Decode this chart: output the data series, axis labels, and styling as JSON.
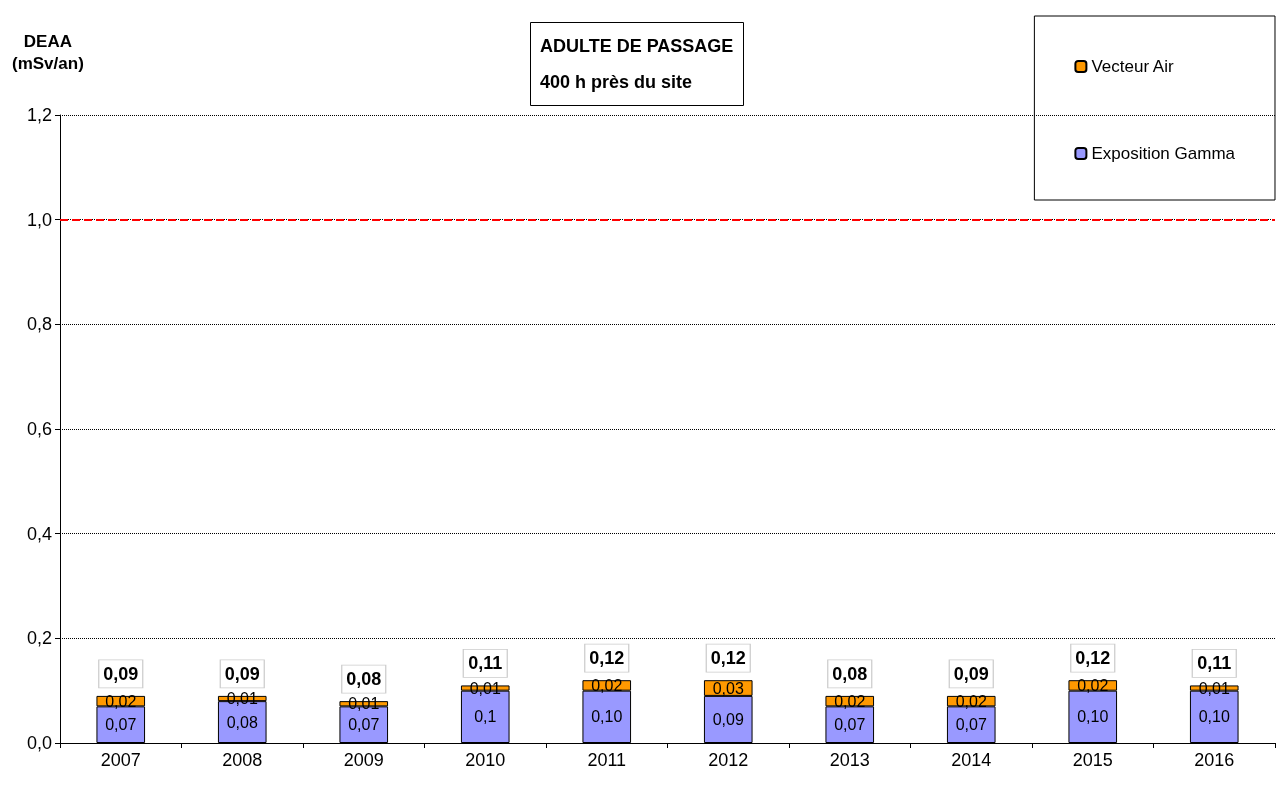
{
  "chart_data": {
    "type": "bar",
    "title": "ADULTE DE PASSAGE",
    "subtitle": "400 h près du site",
    "ylabel": "DEAA\n(mSv/an)",
    "categories": [
      "2007",
      "2008",
      "2009",
      "2010",
      "2011",
      "2012",
      "2013",
      "2014",
      "2015",
      "2016"
    ],
    "stacked": true,
    "series": [
      {
        "name": "Exposition Gamma",
        "color": "#9999ff",
        "values": [
          0.07,
          0.08,
          0.07,
          0.1,
          0.1,
          0.09,
          0.07,
          0.07,
          0.1,
          0.1
        ],
        "value_labels": [
          "0,07",
          "0,08",
          "0,07",
          "0,1",
          "0,10",
          "0,09",
          "0,07",
          "0,07",
          "0,10",
          "0,10"
        ]
      },
      {
        "name": "Vecteur Air",
        "color": "#ff9900",
        "values": [
          0.02,
          0.01,
          0.01,
          0.01,
          0.02,
          0.03,
          0.02,
          0.02,
          0.02,
          0.01
        ],
        "value_labels": [
          "0,02",
          "0,01",
          "0,01",
          "0,01",
          "0,02",
          "0,03",
          "0,02",
          "0,02",
          "0,02",
          "0,01"
        ]
      }
    ],
    "totals": [
      "0,09",
      "0,09",
      "0,08",
      "0,11",
      "0,12",
      "0,12",
      "0,08",
      "0,09",
      "0,12",
      "0,11"
    ],
    "ylim": [
      0,
      1.2
    ],
    "yticks": [
      {
        "value": 0,
        "label": "0,0"
      },
      {
        "value": 0.2,
        "label": "0,2"
      },
      {
        "value": 0.4,
        "label": "0,4"
      },
      {
        "value": 0.6,
        "label": "0,6"
      },
      {
        "value": 0.8,
        "label": "0,8"
      },
      {
        "value": 1.0,
        "label": "1,0"
      },
      {
        "value": 1.2,
        "label": "1,2"
      }
    ],
    "ref_lines": [
      {
        "axis": "y",
        "value": 1.0,
        "color": "#ff0000",
        "line_style": "dashed"
      }
    ],
    "grid": "y",
    "legend": "top right"
  }
}
